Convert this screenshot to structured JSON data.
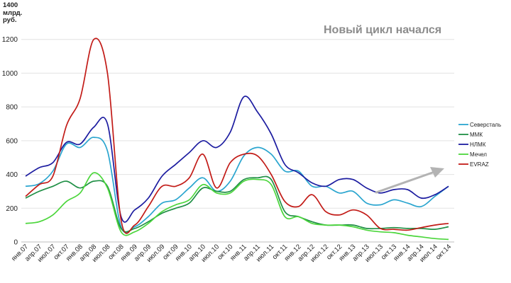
{
  "chart_data": {
    "type": "line",
    "title": "Новый цикл начался",
    "unit_lines": [
      "млрд.",
      "руб."
    ],
    "y_axis_max_label": "1400",
    "ylim": [
      0,
      1400
    ],
    "yticks": [
      0,
      200,
      400,
      600,
      800,
      1000,
      1200
    ],
    "grid": true,
    "legend_position": "right",
    "x_tick_labels": [
      "янв.07",
      "апр.07",
      "июл.07",
      "окт.07",
      "янв.08",
      "апр.08",
      "июл.08",
      "окт.08",
      "янв.09",
      "апр.09",
      "июл.09",
      "окт.09",
      "янв.10",
      "апр.10",
      "июл.10",
      "окт.10",
      "янв.11",
      "апр.11",
      "июл.11",
      "окт.11",
      "янв.12",
      "апр.12",
      "июл.12",
      "окт.12",
      "янв.13",
      "апр.13",
      "июл.13",
      "окт.13",
      "янв.14",
      "апр.14",
      "июл.14",
      "окт.14"
    ],
    "x": [
      0,
      1,
      2,
      3,
      4,
      5,
      6,
      7,
      8,
      9,
      10,
      11,
      12,
      13,
      14,
      15,
      16,
      17,
      18,
      19,
      20,
      21,
      22,
      23,
      24,
      25,
      26,
      27,
      28,
      29,
      30,
      31
    ],
    "series": [
      {
        "name": "Северсталь",
        "color": "#2aa5cf",
        "values": [
          330,
          345,
          420,
          580,
          560,
          620,
          540,
          90,
          90,
          150,
          230,
          250,
          320,
          380,
          300,
          360,
          510,
          560,
          520,
          420,
          420,
          330,
          330,
          290,
          300,
          230,
          220,
          250,
          230,
          210,
          270,
          330
        ]
      },
      {
        "name": "ММК",
        "color": "#1f8f45",
        "values": [
          260,
          300,
          330,
          360,
          320,
          360,
          330,
          80,
          80,
          120,
          170,
          200,
          230,
          320,
          300,
          300,
          370,
          380,
          370,
          180,
          150,
          120,
          100,
          100,
          100,
          80,
          80,
          85,
          80,
          80,
          75,
          90
        ]
      },
      {
        "name": "НЛМК",
        "color": "#1c1ca0",
        "values": [
          390,
          440,
          470,
          590,
          580,
          680,
          700,
          150,
          190,
          260,
          390,
          460,
          530,
          600,
          560,
          650,
          860,
          770,
          640,
          460,
          410,
          350,
          330,
          370,
          370,
          320,
          290,
          310,
          310,
          260,
          280,
          330
        ]
      },
      {
        "name": "Мечел",
        "color": "#4cd63c",
        "values": [
          110,
          120,
          160,
          240,
          290,
          410,
          320,
          60,
          60,
          110,
          180,
          220,
          250,
          340,
          290,
          290,
          360,
          370,
          340,
          150,
          150,
          110,
          100,
          100,
          90,
          70,
          60,
          55,
          40,
          30,
          20,
          15
        ]
      },
      {
        "name": "EVRAZ",
        "color": "#c21b17",
        "values": [
          270,
          340,
          390,
          690,
          850,
          1200,
          1000,
          130,
          100,
          210,
          330,
          330,
          380,
          520,
          320,
          470,
          520,
          510,
          400,
          240,
          210,
          280,
          180,
          160,
          190,
          160,
          80,
          75,
          70,
          85,
          100,
          110
        ]
      }
    ]
  }
}
